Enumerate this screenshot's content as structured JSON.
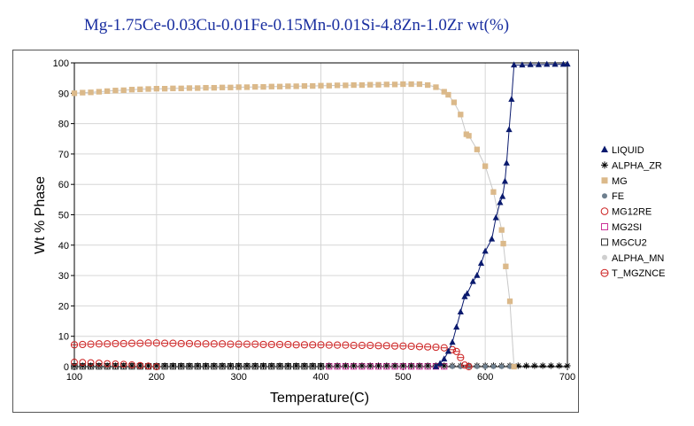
{
  "title": "Mg-1.75Ce-0.03Cu-0.01Fe-0.15Mn-0.01Si-4.8Zn-1.0Zr wt(%)",
  "chart_data": {
    "type": "scatter",
    "title": "Mg-1.75Ce-0.03Cu-0.01Fe-0.15Mn-0.01Si-4.8Zn-1.0Zr wt(%)",
    "xlabel": "Temperature(C)",
    "ylabel": "Wt % Phase",
    "xlim": [
      100,
      700
    ],
    "ylim": [
      0,
      100
    ],
    "xticks": [
      100,
      200,
      300,
      400,
      500,
      600,
      700
    ],
    "yticks": [
      0,
      10,
      20,
      30,
      40,
      50,
      60,
      70,
      80,
      90,
      100
    ],
    "grid": true,
    "legend_position": "right",
    "series": [
      {
        "name": "LIQUID",
        "marker": "triangle",
        "color": "#0a1a6e",
        "line": true,
        "points": [
          [
            540,
            0
          ],
          [
            545,
            1
          ],
          [
            550,
            2.5
          ],
          [
            555,
            5
          ],
          [
            560,
            8
          ],
          [
            565,
            13
          ],
          [
            570,
            18
          ],
          [
            575,
            23
          ],
          [
            578,
            24
          ],
          [
            585,
            28
          ],
          [
            590,
            30
          ],
          [
            595,
            34
          ],
          [
            600,
            38
          ],
          [
            608,
            42
          ],
          [
            613,
            49
          ],
          [
            618,
            54
          ],
          [
            621,
            56
          ],
          [
            624,
            61
          ],
          [
            626,
            67
          ],
          [
            629,
            78
          ],
          [
            632,
            88
          ],
          [
            635,
            99.3
          ],
          [
            645,
            99.3
          ],
          [
            655,
            99.4
          ],
          [
            665,
            99.4
          ],
          [
            675,
            99.5
          ],
          [
            685,
            99.5
          ],
          [
            695,
            99.5
          ],
          [
            700,
            99.6
          ]
        ]
      },
      {
        "name": "ALPHA_ZR",
        "marker": "asterisk",
        "color": "#000000",
        "line": false,
        "points": [
          [
            100,
            0.3
          ],
          [
            110,
            0.3
          ],
          [
            120,
            0.3
          ],
          [
            130,
            0.3
          ],
          [
            140,
            0.3
          ],
          [
            150,
            0.3
          ],
          [
            160,
            0.3
          ],
          [
            170,
            0.3
          ],
          [
            180,
            0.3
          ],
          [
            190,
            0.3
          ],
          [
            200,
            0.3
          ],
          [
            210,
            0.3
          ],
          [
            220,
            0.3
          ],
          [
            230,
            0.3
          ],
          [
            240,
            0.3
          ],
          [
            250,
            0.3
          ],
          [
            260,
            0.3
          ],
          [
            270,
            0.3
          ],
          [
            280,
            0.3
          ],
          [
            290,
            0.3
          ],
          [
            300,
            0.3
          ],
          [
            310,
            0.3
          ],
          [
            320,
            0.3
          ],
          [
            330,
            0.3
          ],
          [
            340,
            0.3
          ],
          [
            350,
            0.3
          ],
          [
            360,
            0.3
          ],
          [
            370,
            0.3
          ],
          [
            380,
            0.3
          ],
          [
            390,
            0.3
          ],
          [
            400,
            0.3
          ],
          [
            410,
            0.3
          ],
          [
            420,
            0.3
          ],
          [
            430,
            0.3
          ],
          [
            440,
            0.3
          ],
          [
            450,
            0.3
          ],
          [
            460,
            0.3
          ],
          [
            470,
            0.3
          ],
          [
            480,
            0.3
          ],
          [
            490,
            0.3
          ],
          [
            500,
            0.3
          ],
          [
            510,
            0.3
          ],
          [
            520,
            0.3
          ],
          [
            530,
            0.3
          ],
          [
            540,
            0.3
          ],
          [
            550,
            0.3
          ],
          [
            560,
            0.3
          ],
          [
            570,
            0.3
          ],
          [
            580,
            0.3
          ],
          [
            590,
            0.3
          ],
          [
            600,
            0.3
          ],
          [
            610,
            0.3
          ],
          [
            620,
            0.3
          ],
          [
            630,
            0.3
          ],
          [
            640,
            0.3
          ],
          [
            650,
            0.3
          ],
          [
            660,
            0.3
          ],
          [
            670,
            0.3
          ],
          [
            680,
            0.3
          ],
          [
            690,
            0.3
          ],
          [
            700,
            0.3
          ]
        ]
      },
      {
        "name": "MG",
        "marker": "square-filled",
        "color": "#dbb98a",
        "line": true,
        "points": [
          [
            100,
            90
          ],
          [
            110,
            90.2
          ],
          [
            120,
            90.3
          ],
          [
            130,
            90.5
          ],
          [
            140,
            90.7
          ],
          [
            150,
            90.9
          ],
          [
            160,
            91
          ],
          [
            170,
            91.2
          ],
          [
            180,
            91.3
          ],
          [
            190,
            91.4
          ],
          [
            200,
            91.5
          ],
          [
            210,
            91.5
          ],
          [
            220,
            91.6
          ],
          [
            230,
            91.6
          ],
          [
            240,
            91.7
          ],
          [
            250,
            91.7
          ],
          [
            260,
            91.8
          ],
          [
            270,
            91.8
          ],
          [
            280,
            91.9
          ],
          [
            290,
            91.9
          ],
          [
            300,
            92
          ],
          [
            310,
            92
          ],
          [
            320,
            92.1
          ],
          [
            330,
            92.1
          ],
          [
            340,
            92.2
          ],
          [
            350,
            92.2
          ],
          [
            360,
            92.3
          ],
          [
            370,
            92.3
          ],
          [
            380,
            92.4
          ],
          [
            390,
            92.4
          ],
          [
            400,
            92.5
          ],
          [
            410,
            92.5
          ],
          [
            420,
            92.6
          ],
          [
            430,
            92.6
          ],
          [
            440,
            92.7
          ],
          [
            450,
            92.7
          ],
          [
            460,
            92.8
          ],
          [
            470,
            92.8
          ],
          [
            480,
            92.9
          ],
          [
            490,
            92.9
          ],
          [
            500,
            93
          ],
          [
            510,
            93
          ],
          [
            520,
            93
          ],
          [
            530,
            92.7
          ],
          [
            540,
            92
          ],
          [
            550,
            90.5
          ],
          [
            555,
            89.5
          ],
          [
            562,
            87
          ],
          [
            570,
            83
          ],
          [
            577,
            76.5
          ],
          [
            580,
            76
          ],
          [
            590,
            71.5
          ],
          [
            600,
            66
          ],
          [
            610,
            57.5
          ],
          [
            620,
            45
          ],
          [
            622,
            40.5
          ],
          [
            625,
            33
          ],
          [
            630,
            21.5
          ],
          [
            635,
            0
          ]
        ]
      },
      {
        "name": "FE",
        "marker": "circle-filled",
        "color": "#6e7f8e",
        "line": false,
        "points": [
          [
            560,
            0
          ],
          [
            570,
            0
          ],
          [
            580,
            0
          ],
          [
            590,
            0
          ],
          [
            600,
            0
          ],
          [
            610,
            0
          ],
          [
            620,
            0
          ],
          [
            630,
            0
          ]
        ]
      },
      {
        "name": "MG12RE",
        "marker": "circle-open",
        "color": "#cc2222",
        "line": false,
        "points": [
          [
            100,
            1.5
          ],
          [
            110,
            1.4
          ],
          [
            120,
            1.3
          ],
          [
            130,
            1.2
          ],
          [
            140,
            1.0
          ],
          [
            150,
            0.9
          ],
          [
            160,
            0.8
          ],
          [
            170,
            0.6
          ],
          [
            180,
            0.4
          ],
          [
            190,
            0.2
          ],
          [
            200,
            0
          ]
        ]
      },
      {
        "name": "MG2SI",
        "marker": "square-open",
        "color": "#cc3399",
        "line": false,
        "points": [
          [
            410,
            0.1
          ],
          [
            420,
            0.1
          ],
          [
            430,
            0.1
          ],
          [
            440,
            0.1
          ],
          [
            450,
            0.1
          ],
          [
            460,
            0.1
          ],
          [
            470,
            0.1
          ],
          [
            480,
            0.1
          ],
          [
            490,
            0.1
          ],
          [
            500,
            0.1
          ],
          [
            510,
            0.1
          ],
          [
            520,
            0.1
          ],
          [
            530,
            0.1
          ],
          [
            540,
            0.1
          ],
          [
            550,
            0.1
          ]
        ]
      },
      {
        "name": "MGCU2",
        "marker": "square-open",
        "color": "#333333",
        "line": false,
        "points": [
          [
            100,
            0.1
          ],
          [
            110,
            0.1
          ],
          [
            120,
            0.1
          ],
          [
            130,
            0.1
          ],
          [
            140,
            0.1
          ],
          [
            150,
            0.1
          ],
          [
            160,
            0.1
          ],
          [
            170,
            0.1
          ],
          [
            180,
            0.1
          ],
          [
            190,
            0.1
          ],
          [
            200,
            0.1
          ],
          [
            210,
            0.1
          ],
          [
            220,
            0.1
          ],
          [
            230,
            0.1
          ],
          [
            240,
            0.1
          ],
          [
            250,
            0.1
          ],
          [
            260,
            0.1
          ],
          [
            270,
            0.1
          ],
          [
            280,
            0.1
          ],
          [
            290,
            0.1
          ],
          [
            300,
            0.1
          ],
          [
            310,
            0.1
          ],
          [
            320,
            0.1
          ],
          [
            330,
            0.1
          ],
          [
            340,
            0.1
          ],
          [
            350,
            0.1
          ],
          [
            360,
            0.1
          ],
          [
            370,
            0.1
          ],
          [
            380,
            0.1
          ],
          [
            390,
            0.1
          ],
          [
            400,
            0.1
          ]
        ]
      },
      {
        "name": "ALPHA_MN",
        "marker": "circle-filled",
        "color": "#cfcfcf",
        "line": false,
        "points": []
      },
      {
        "name": "T_MGZNCE",
        "marker": "circle-crossed",
        "color": "#cc2222",
        "line": false,
        "points": [
          [
            100,
            7.2
          ],
          [
            110,
            7.3
          ],
          [
            120,
            7.4
          ],
          [
            130,
            7.5
          ],
          [
            140,
            7.5
          ],
          [
            150,
            7.6
          ],
          [
            160,
            7.6
          ],
          [
            170,
            7.7
          ],
          [
            180,
            7.7
          ],
          [
            190,
            7.8
          ],
          [
            200,
            7.8
          ],
          [
            210,
            7.7
          ],
          [
            220,
            7.7
          ],
          [
            230,
            7.6
          ],
          [
            240,
            7.6
          ],
          [
            250,
            7.5
          ],
          [
            260,
            7.5
          ],
          [
            270,
            7.5
          ],
          [
            280,
            7.5
          ],
          [
            290,
            7.4
          ],
          [
            300,
            7.4
          ],
          [
            310,
            7.4
          ],
          [
            320,
            7.4
          ],
          [
            330,
            7.3
          ],
          [
            340,
            7.3
          ],
          [
            350,
            7.3
          ],
          [
            360,
            7.3
          ],
          [
            370,
            7.2
          ],
          [
            380,
            7.2
          ],
          [
            390,
            7.2
          ],
          [
            400,
            7.2
          ],
          [
            410,
            7.1
          ],
          [
            420,
            7.1
          ],
          [
            430,
            7.1
          ],
          [
            440,
            7.0
          ],
          [
            450,
            7.0
          ],
          [
            460,
            7.0
          ],
          [
            470,
            6.9
          ],
          [
            480,
            6.9
          ],
          [
            490,
            6.8
          ],
          [
            500,
            6.8
          ],
          [
            510,
            6.7
          ],
          [
            520,
            6.6
          ],
          [
            530,
            6.5
          ],
          [
            540,
            6.4
          ],
          [
            550,
            6.2
          ],
          [
            560,
            5.6
          ],
          [
            565,
            5
          ],
          [
            570,
            3
          ],
          [
            575,
            0.5
          ],
          [
            580,
            0
          ]
        ]
      }
    ]
  }
}
